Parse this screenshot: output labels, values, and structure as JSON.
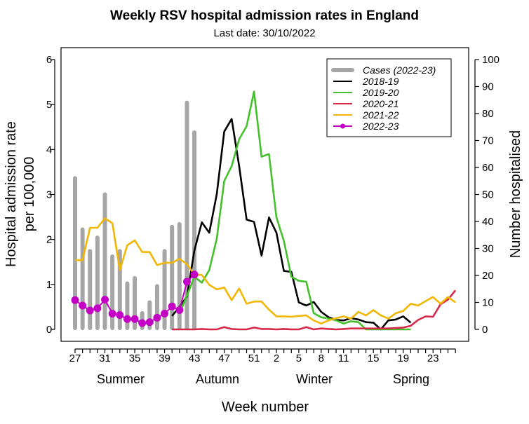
{
  "chart_data": {
    "type": "line",
    "title": "Weekly RSV hospital admission rates in England",
    "subtitle": "Last date: 30/10/2022",
    "xlabel": "Week number",
    "ylabel_left": [
      "Hospital admission rate",
      "per 100,000"
    ],
    "ylabel_right": "Number hospitalised",
    "ylim_left": [
      0,
      6
    ],
    "ylim_right": [
      0,
      100
    ],
    "yticks_left": [
      "0",
      "1",
      "2",
      "3",
      "4",
      "5",
      "6"
    ],
    "yticks_right": [
      "0",
      "10",
      "20",
      "30",
      "40",
      "50",
      "60",
      "70",
      "80",
      "90",
      "100"
    ],
    "weeks": [
      27,
      28,
      29,
      30,
      31,
      32,
      33,
      34,
      35,
      36,
      37,
      38,
      39,
      40,
      41,
      42,
      43,
      44,
      45,
      46,
      47,
      48,
      49,
      50,
      51,
      52,
      1,
      2,
      3,
      4,
      5,
      6,
      7,
      8,
      9,
      10,
      11,
      12,
      13,
      14,
      15,
      16,
      17,
      18,
      19,
      20,
      21,
      22,
      23,
      24,
      25,
      26
    ],
    "xtick_labels": [
      "27",
      "31",
      "35",
      "39",
      "43",
      "47",
      "51",
      "2",
      "5",
      "8",
      "11",
      "15",
      "19",
      "23"
    ],
    "seasons": [
      "Summer",
      "Autumn",
      "Winter",
      "Spring"
    ],
    "grid": false,
    "legend_position": "top-right",
    "bars": {
      "name": "Cases (2022-23)",
      "axis": "right",
      "color": "#a6a6a6",
      "values": [
        56,
        37,
        29,
        34,
        50,
        27,
        29,
        17,
        19,
        6,
        10,
        16,
        29,
        38,
        39,
        84,
        73
      ]
    },
    "series": [
      {
        "name": "2018-19",
        "color": "#000000",
        "axis": "left",
        "values": [
          null,
          null,
          null,
          null,
          null,
          null,
          null,
          null,
          null,
          null,
          null,
          null,
          null,
          0.3,
          0.5,
          0.73,
          1.76,
          2.38,
          2.15,
          3.01,
          4.4,
          4.68,
          3.63,
          2.44,
          2.39,
          1.64,
          2.49,
          2.15,
          1.3,
          1.28,
          0.6,
          0.53,
          0.61,
          0.39,
          0.27,
          0.21,
          0.2,
          0.25,
          0.22,
          0.16,
          0.15,
          0.0,
          0.2,
          0.22,
          0.29,
          0.15,
          null,
          null,
          null,
          null,
          null,
          null
        ]
      },
      {
        "name": "2019-20",
        "color": "#44c02c",
        "axis": "left",
        "values": [
          null,
          null,
          null,
          null,
          null,
          null,
          null,
          null,
          null,
          null,
          null,
          null,
          null,
          null,
          0.35,
          0.75,
          1.17,
          1.04,
          1.32,
          2.02,
          3.3,
          3.63,
          4.23,
          4.52,
          5.29,
          3.84,
          3.9,
          2.49,
          1.97,
          1.17,
          1.08,
          1.06,
          0.36,
          0.27,
          0.24,
          0.2,
          0.13,
          0.18,
          0.16,
          0,
          0,
          0,
          0,
          0,
          0,
          0,
          null,
          null,
          null,
          null,
          null,
          null
        ]
      },
      {
        "name": "2020-21",
        "color": "#d8284a",
        "axis": "left",
        "values": [
          null,
          null,
          null,
          null,
          null,
          null,
          null,
          null,
          null,
          null,
          null,
          null,
          null,
          0,
          0,
          0,
          0,
          0.01,
          0,
          0,
          0.05,
          0.01,
          0,
          0,
          0.04,
          0.01,
          0.01,
          0,
          0.01,
          0,
          0,
          0.05,
          0,
          0.02,
          0.01,
          0,
          0.01,
          0.02,
          0.02,
          0.02,
          0.02,
          0.02,
          0.02,
          0.03,
          0.04,
          0.08,
          0.21,
          0.29,
          0.28,
          0.56,
          0.66,
          0.87
        ]
      },
      {
        "name": "2021-22",
        "color": "#f2b705",
        "axis": "left",
        "values": [
          1.54,
          1.54,
          2.26,
          2.26,
          2.47,
          2.36,
          1.32,
          1.87,
          1.98,
          1.72,
          1.72,
          1.43,
          1.48,
          1.48,
          1.57,
          1.45,
          1.22,
          1.21,
          0.99,
          0.89,
          0.93,
          0.65,
          0.91,
          0.57,
          0.62,
          0.62,
          0.44,
          0.29,
          0.29,
          0.28,
          0.3,
          0.31,
          0.2,
          0.13,
          0.2,
          0.25,
          0.29,
          0.24,
          0.39,
          0.31,
          0.43,
          0.31,
          0.24,
          0.36,
          0.41,
          0.57,
          0.53,
          0.63,
          0.72,
          0.57,
          0.72,
          0.6
        ]
      },
      {
        "name": "2022-23",
        "color": "#c400c4",
        "axis": "left",
        "markers": true,
        "values": [
          0.65,
          0.53,
          0.42,
          0.47,
          0.66,
          0.35,
          0.32,
          0.23,
          0.23,
          0.14,
          0.16,
          0.26,
          0.35,
          0.51,
          0.43,
          1.06,
          1.22,
          null,
          null,
          null,
          null,
          null,
          null,
          null,
          null,
          null,
          null,
          null,
          null,
          null,
          null,
          null,
          null,
          null,
          null,
          null,
          null,
          null,
          null,
          null,
          null,
          null,
          null,
          null,
          null,
          null,
          null,
          null,
          null,
          null,
          null,
          null
        ]
      }
    ]
  }
}
